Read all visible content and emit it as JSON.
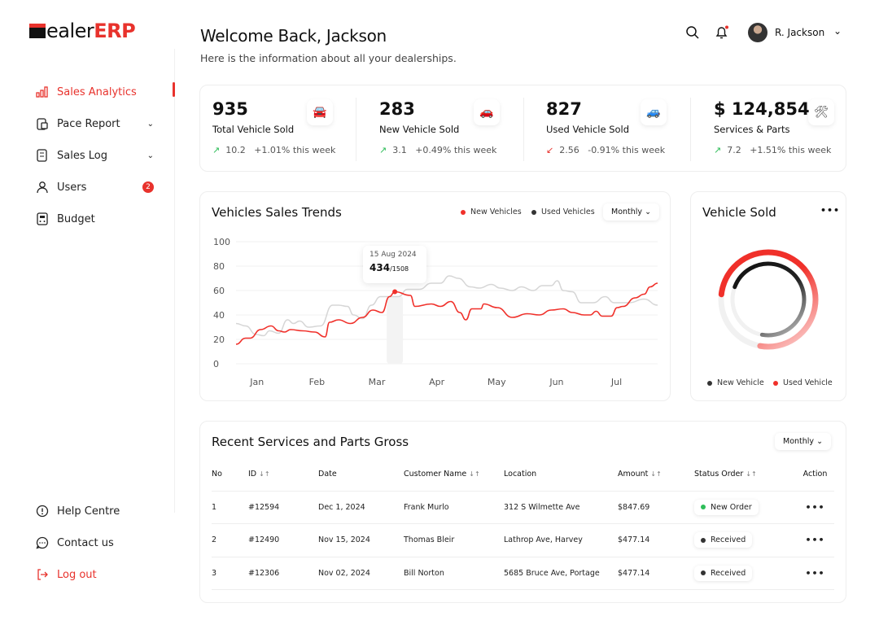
{
  "brand": {
    "logo_prefix": "D",
    "logo_mid": "ealer",
    "logo_accent": "ERP",
    "accent": "#e8322c"
  },
  "sidebar": {
    "items": [
      {
        "label": "Sales Analytics",
        "icon": "bar-chart-icon",
        "active": true
      },
      {
        "label": "Pace Report",
        "icon": "clipboard-icon",
        "expandable": true
      },
      {
        "label": "Sales Log",
        "icon": "receipt-icon",
        "expandable": true
      },
      {
        "label": "Users",
        "icon": "user-icon",
        "badge": "2"
      },
      {
        "label": "Budget",
        "icon": "calculator-icon"
      }
    ],
    "bottom": [
      {
        "label": "Help Centre",
        "icon": "info-icon"
      },
      {
        "label": "Contact us",
        "icon": "chat-icon"
      },
      {
        "label": "Log out",
        "icon": "logout-icon"
      }
    ]
  },
  "header": {
    "title": "Welcome Back, Jackson",
    "subtitle": "Here is the information about all your dealerships.",
    "user": "R. Jackson"
  },
  "stats": [
    {
      "value": "935",
      "label": "Total Vehicle Sold",
      "delta": "10.2",
      "change": "+1.01% this week",
      "trend": "up",
      "icon": "car-icon"
    },
    {
      "value": "283",
      "label": "New Vehicle Sold",
      "delta": "3.1",
      "change": "+0.49% this week",
      "trend": "up",
      "icon": "new-car-icon"
    },
    {
      "value": "827",
      "label": "Used Vehicle Sold",
      "delta": "2.56",
      "change": "-0.91% this week",
      "trend": "down",
      "icon": "car-wash-icon"
    },
    {
      "value": "$ 124,854",
      "label": "Services & Parts",
      "delta": "7.2",
      "change": "+1.51% this week",
      "trend": "up",
      "icon": "tools-icon"
    }
  ],
  "trends": {
    "title": "Vehicles Sales Trends",
    "legend_new": "New Vehicles",
    "legend_used": "Used Vehicles",
    "period": "Monthly",
    "tooltip": {
      "date": "15 Aug 2024",
      "value": "434",
      "total": "/1508"
    }
  },
  "chart_data": {
    "type": "line",
    "ylim": [
      0,
      100
    ],
    "xlim": [
      0.65,
      7.685
    ],
    "yticks": [
      "0",
      "20",
      "40",
      "60",
      "80",
      "100"
    ],
    "xticks": [
      "Jan",
      "Feb",
      "Mar",
      "Apr",
      "May",
      "Jun",
      "Jul"
    ],
    "grid": true,
    "legend": "top-right",
    "series": [
      {
        "name": "New Vehicles",
        "color": "#f0302a",
        "points": [
          [
            0.65,
            16
          ],
          [
            0.81,
            21
          ],
          [
            0.885,
            21
          ],
          [
            1.06,
            28
          ],
          [
            1.235,
            31
          ],
          [
            1.36,
            27
          ],
          [
            1.46,
            26
          ],
          [
            1.56,
            28
          ],
          [
            1.76,
            27
          ],
          [
            1.96,
            26
          ],
          [
            2.135,
            22
          ],
          [
            2.21,
            34
          ],
          [
            2.36,
            36
          ],
          [
            2.56,
            33
          ],
          [
            2.76,
            38
          ],
          [
            2.935,
            44
          ],
          [
            3.085,
            42
          ],
          [
            3.21,
            55
          ],
          [
            3.3,
            59
          ],
          [
            3.56,
            56
          ],
          [
            3.635,
            47
          ],
          [
            3.91,
            49
          ],
          [
            4.06,
            47
          ],
          [
            4.235,
            51
          ],
          [
            4.385,
            42
          ],
          [
            4.485,
            36
          ],
          [
            4.585,
            45
          ],
          [
            4.735,
            45
          ],
          [
            4.785,
            49
          ],
          [
            5.01,
            46
          ],
          [
            5.26,
            38
          ],
          [
            5.51,
            41
          ],
          [
            5.71,
            40
          ],
          [
            5.91,
            44
          ],
          [
            6.11,
            45
          ],
          [
            6.26,
            42
          ],
          [
            6.46,
            40
          ],
          [
            6.56,
            40
          ],
          [
            6.66,
            43
          ],
          [
            6.76,
            39
          ],
          [
            6.91,
            39
          ],
          [
            7.01,
            46
          ],
          [
            7.11,
            47
          ],
          [
            7.31,
            54
          ],
          [
            7.46,
            57
          ],
          [
            7.56,
            63
          ],
          [
            7.685,
            66
          ]
        ]
      },
      {
        "name": "Used Vehicles",
        "color": "#d6d6d6",
        "points": [
          [
            0.65,
            33
          ],
          [
            0.81,
            31
          ],
          [
            0.985,
            24
          ],
          [
            1.11,
            23
          ],
          [
            1.21,
            27
          ],
          [
            1.36,
            25
          ],
          [
            1.51,
            36
          ],
          [
            1.61,
            33
          ],
          [
            1.71,
            35
          ],
          [
            1.86,
            30
          ],
          [
            2.06,
            31
          ],
          [
            2.26,
            48
          ],
          [
            2.36,
            48
          ],
          [
            2.51,
            47
          ],
          [
            2.61,
            40
          ],
          [
            2.76,
            37
          ],
          [
            2.91,
            48
          ],
          [
            3.06,
            55
          ],
          [
            3.21,
            55
          ],
          [
            3.36,
            55
          ],
          [
            3.51,
            61
          ],
          [
            3.71,
            61
          ],
          [
            3.91,
            66
          ],
          [
            4.06,
            66
          ],
          [
            4.21,
            72
          ],
          [
            4.36,
            70
          ],
          [
            4.56,
            63
          ],
          [
            4.71,
            62
          ],
          [
            4.91,
            65
          ],
          [
            5.06,
            62
          ],
          [
            5.26,
            60
          ],
          [
            5.41,
            63
          ],
          [
            5.61,
            60
          ],
          [
            5.76,
            64
          ],
          [
            5.91,
            64
          ],
          [
            6.01,
            68
          ],
          [
            6.11,
            60
          ],
          [
            6.26,
            59
          ],
          [
            6.41,
            50
          ],
          [
            6.61,
            50
          ],
          [
            6.81,
            55
          ],
          [
            6.96,
            50
          ],
          [
            7.21,
            50
          ],
          [
            7.46,
            53
          ],
          [
            7.685,
            48
          ]
        ]
      }
    ]
  },
  "donut": {
    "title": "Vehicle Sold",
    "legend_new": "New Vehicle",
    "legend_used": "Used Vehicle",
    "new_fraction": 0.72,
    "used_fraction": 0.76,
    "new_color": "#111111",
    "used_color": "#f0302a"
  },
  "table": {
    "title": "Recent Services and Parts Gross",
    "period": "Monthly",
    "headers": [
      "No",
      "ID",
      "Date",
      "Customer Name",
      "Location",
      "Amount",
      "Status Order",
      "Action"
    ],
    "sort_icon": "↓↑",
    "rows": [
      {
        "no": "1",
        "id": "#12594",
        "date": "Dec 1, 2024",
        "customer": "Frank Murlo",
        "location": "312 S Wilmette Ave",
        "amount": "$847.69",
        "status": "New Order",
        "status_color": "#2ebd59"
      },
      {
        "no": "2",
        "id": "#12490",
        "date": "Nov 15, 2024",
        "customer": "Thomas  Bleir",
        "location": "Lathrop Ave, Harvey",
        "amount": "$477.14",
        "status": "Received",
        "status_color": "#333333"
      },
      {
        "no": "3",
        "id": "#12306",
        "date": "Nov 02, 2024",
        "customer": "Bill Norton",
        "location": "5685 Bruce Ave, Portage",
        "amount": "$477.14",
        "status": "Received",
        "status_color": "#333333"
      }
    ]
  }
}
